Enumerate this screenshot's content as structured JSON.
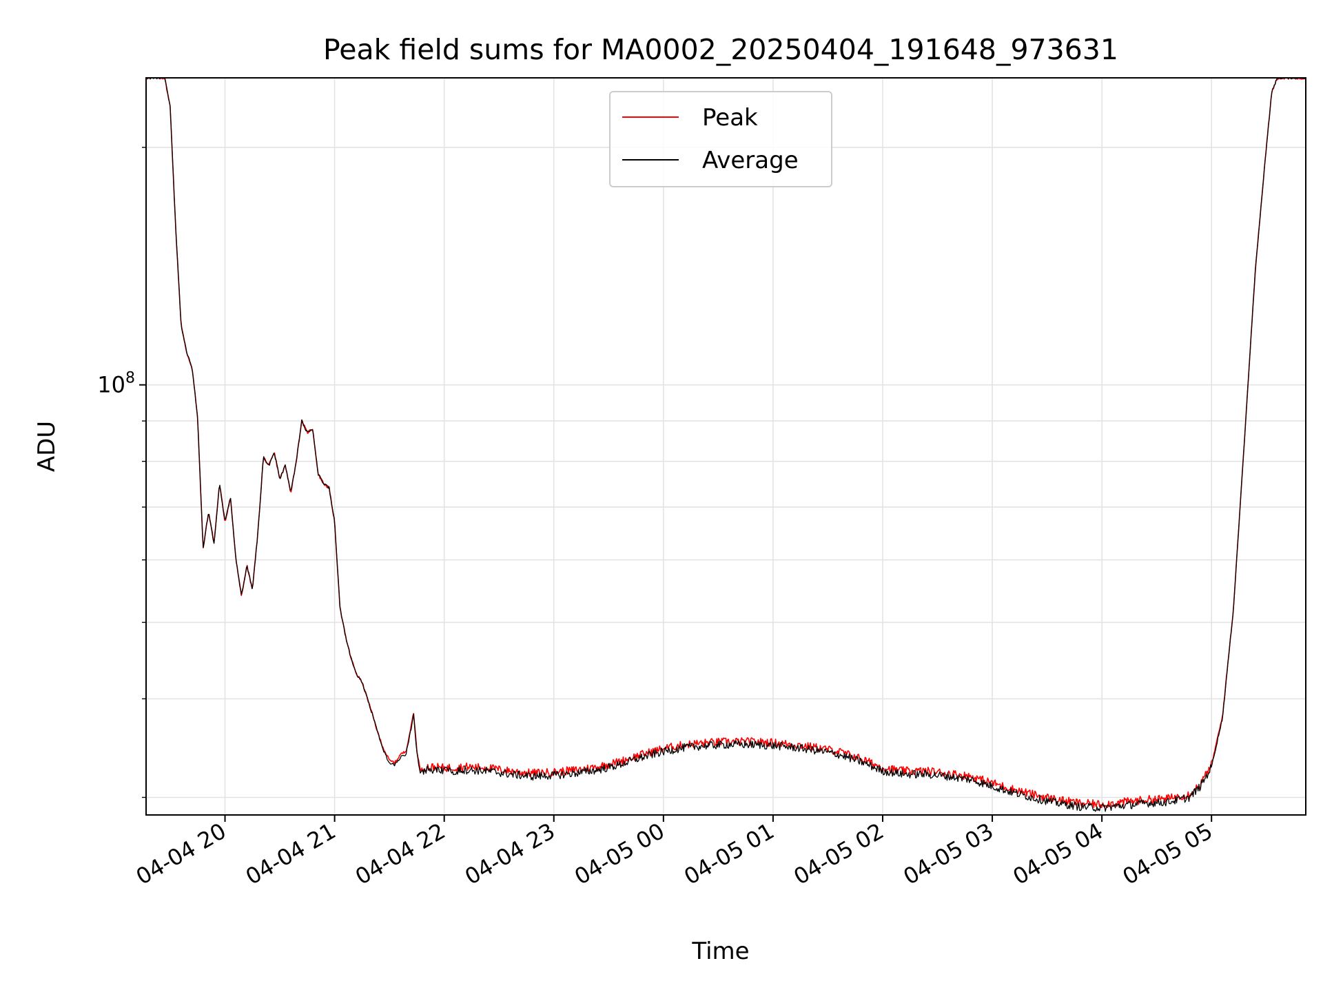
{
  "chart_data": {
    "type": "line",
    "title": "Peak field sums for MA0002_20250404_191648_973631",
    "xlabel": "Time",
    "ylabel": "ADU",
    "y_scale": "log",
    "grid": true,
    "legend_position": "upper center",
    "y_major_tick_label": "10^8",
    "x_tick_labels": [
      "04-04 20",
      "04-04 21",
      "04-04 22",
      "04-04 23",
      "04-05 00",
      "04-05 01",
      "04-05 02",
      "04-05 03",
      "04-05 04",
      "04-05 05"
    ],
    "x_tick_hours": [
      20,
      21,
      22,
      23,
      24,
      25,
      26,
      27,
      28,
      29
    ],
    "xlim_hours": [
      19.28,
      29.86
    ],
    "ylim": [
      28500000,
      245000000
    ],
    "series": [
      {
        "name": "Peak",
        "color": "#ff0000",
        "points": [
          [
            19.28,
            245000000
          ],
          [
            19.45,
            245000000
          ],
          [
            19.5,
            225000000
          ],
          [
            19.55,
            158000000
          ],
          [
            19.6,
            119000000
          ],
          [
            19.65,
            110000000
          ],
          [
            19.7,
            105000000
          ],
          [
            19.75,
            91000000
          ],
          [
            19.8,
            62000000
          ],
          [
            19.85,
            69000000
          ],
          [
            19.9,
            63000000
          ],
          [
            19.95,
            75000000
          ],
          [
            20.0,
            67000000
          ],
          [
            20.05,
            72000000
          ],
          [
            20.1,
            60000000
          ],
          [
            20.15,
            54000000
          ],
          [
            20.2,
            59000000
          ],
          [
            20.25,
            55000000
          ],
          [
            20.3,
            65000000
          ],
          [
            20.35,
            81000000
          ],
          [
            20.4,
            79000000
          ],
          [
            20.45,
            82000000
          ],
          [
            20.5,
            76000000
          ],
          [
            20.55,
            79000000
          ],
          [
            20.6,
            73000000
          ],
          [
            20.65,
            80000000
          ],
          [
            20.7,
            90000000
          ],
          [
            20.75,
            87000000
          ],
          [
            20.8,
            88000000
          ],
          [
            20.85,
            77000000
          ],
          [
            20.9,
            75000000
          ],
          [
            20.95,
            74000000
          ],
          [
            21.0,
            67000000
          ],
          [
            21.05,
            52000000
          ],
          [
            21.1,
            48000000
          ],
          [
            21.15,
            45000000
          ],
          [
            21.2,
            43000000
          ],
          [
            21.25,
            42000000
          ],
          [
            21.3,
            40000000
          ],
          [
            21.35,
            38000000
          ],
          [
            21.4,
            36000000
          ],
          [
            21.45,
            34500000
          ],
          [
            21.5,
            33400000
          ],
          [
            21.55,
            33200000
          ],
          [
            21.6,
            34000000
          ],
          [
            21.65,
            34300000
          ],
          [
            21.7,
            37000000
          ],
          [
            21.72,
            38500000
          ],
          [
            21.75,
            34500000
          ],
          [
            21.78,
            32500000
          ],
          [
            21.85,
            32800000
          ],
          [
            22.0,
            32700000
          ],
          [
            22.2,
            32800000
          ],
          [
            22.4,
            32700000
          ],
          [
            22.6,
            32400000
          ],
          [
            22.8,
            32200000
          ],
          [
            23.0,
            32300000
          ],
          [
            23.2,
            32500000
          ],
          [
            23.4,
            32800000
          ],
          [
            23.6,
            33300000
          ],
          [
            23.8,
            34000000
          ],
          [
            24.0,
            34600000
          ],
          [
            24.2,
            35000000
          ],
          [
            24.4,
            35200000
          ],
          [
            24.6,
            35300000
          ],
          [
            24.8,
            35300000
          ],
          [
            25.0,
            35200000
          ],
          [
            25.2,
            35000000
          ],
          [
            25.4,
            34700000
          ],
          [
            25.6,
            34300000
          ],
          [
            25.8,
            33600000
          ],
          [
            26.0,
            32700000
          ],
          [
            26.2,
            32400000
          ],
          [
            26.4,
            32400000
          ],
          [
            26.6,
            32200000
          ],
          [
            26.8,
            31900000
          ],
          [
            27.0,
            31300000
          ],
          [
            27.2,
            30700000
          ],
          [
            27.4,
            30200000
          ],
          [
            27.6,
            29800000
          ],
          [
            27.8,
            29500000
          ],
          [
            28.0,
            29400000
          ],
          [
            28.2,
            29600000
          ],
          [
            28.4,
            29800000
          ],
          [
            28.6,
            29900000
          ],
          [
            28.8,
            30300000
          ],
          [
            28.9,
            31200000
          ],
          [
            29.0,
            33000000
          ],
          [
            29.1,
            38000000
          ],
          [
            29.2,
            52000000
          ],
          [
            29.3,
            85000000
          ],
          [
            29.4,
            140000000
          ],
          [
            29.5,
            200000000
          ],
          [
            29.55,
            235000000
          ],
          [
            29.6,
            245000000
          ],
          [
            29.86,
            245000000
          ]
        ]
      },
      {
        "name": "Average",
        "color": "#000000",
        "points": [
          [
            19.28,
            245000000
          ],
          [
            19.45,
            245000000
          ],
          [
            19.5,
            225000000
          ],
          [
            19.55,
            158000000
          ],
          [
            19.6,
            119000000
          ],
          [
            19.65,
            110000000
          ],
          [
            19.7,
            105000000
          ],
          [
            19.75,
            91000000
          ],
          [
            19.8,
            62000000
          ],
          [
            19.85,
            69000000
          ],
          [
            19.9,
            63000000
          ],
          [
            19.95,
            75000000
          ],
          [
            20.0,
            67000000
          ],
          [
            20.05,
            72000000
          ],
          [
            20.1,
            60000000
          ],
          [
            20.15,
            54000000
          ],
          [
            20.2,
            59000000
          ],
          [
            20.25,
            55000000
          ],
          [
            20.3,
            65000000
          ],
          [
            20.35,
            81000000
          ],
          [
            20.4,
            79000000
          ],
          [
            20.45,
            82000000
          ],
          [
            20.5,
            76000000
          ],
          [
            20.55,
            79000000
          ],
          [
            20.6,
            73000000
          ],
          [
            20.65,
            80000000
          ],
          [
            20.7,
            90000000
          ],
          [
            20.75,
            87000000
          ],
          [
            20.8,
            88000000
          ],
          [
            20.85,
            77000000
          ],
          [
            20.9,
            75000000
          ],
          [
            20.95,
            74000000
          ],
          [
            21.0,
            67000000
          ],
          [
            21.05,
            52000000
          ],
          [
            21.1,
            48000000
          ],
          [
            21.15,
            45000000
          ],
          [
            21.2,
            43000000
          ],
          [
            21.25,
            42000000
          ],
          [
            21.3,
            40000000
          ],
          [
            21.35,
            38000000
          ],
          [
            21.4,
            36000000
          ],
          [
            21.45,
            34300000
          ],
          [
            21.5,
            33100000
          ],
          [
            21.55,
            33000000
          ],
          [
            21.6,
            33700000
          ],
          [
            21.65,
            34000000
          ],
          [
            21.7,
            36800000
          ],
          [
            21.72,
            38300000
          ],
          [
            21.75,
            34200000
          ],
          [
            21.78,
            32300000
          ],
          [
            21.85,
            32500000
          ],
          [
            22.0,
            32400000
          ],
          [
            22.2,
            32500000
          ],
          [
            22.4,
            32400000
          ],
          [
            22.6,
            32100000
          ],
          [
            22.8,
            31900000
          ],
          [
            23.0,
            32000000
          ],
          [
            23.2,
            32200000
          ],
          [
            23.4,
            32500000
          ],
          [
            23.6,
            33000000
          ],
          [
            23.8,
            33700000
          ],
          [
            24.0,
            34300000
          ],
          [
            24.2,
            34700000
          ],
          [
            24.4,
            34900000
          ],
          [
            24.6,
            35000000
          ],
          [
            24.8,
            35000000
          ],
          [
            25.0,
            34900000
          ],
          [
            25.2,
            34700000
          ],
          [
            25.4,
            34400000
          ],
          [
            25.6,
            34000000
          ],
          [
            25.8,
            33300000
          ],
          [
            26.0,
            32400000
          ],
          [
            26.2,
            32100000
          ],
          [
            26.4,
            32100000
          ],
          [
            26.6,
            31900000
          ],
          [
            26.8,
            31600000
          ],
          [
            27.0,
            31000000
          ],
          [
            27.2,
            30400000
          ],
          [
            27.4,
            29900000
          ],
          [
            27.6,
            29500000
          ],
          [
            27.8,
            29200000
          ],
          [
            28.0,
            29100000
          ],
          [
            28.2,
            29300000
          ],
          [
            28.4,
            29500000
          ],
          [
            28.6,
            29600000
          ],
          [
            28.8,
            30000000
          ],
          [
            28.9,
            31000000
          ],
          [
            29.0,
            32800000
          ],
          [
            29.1,
            37800000
          ],
          [
            29.2,
            52000000
          ],
          [
            29.3,
            85000000
          ],
          [
            29.4,
            140000000
          ],
          [
            29.5,
            200000000
          ],
          [
            29.55,
            235000000
          ],
          [
            29.6,
            245000000
          ],
          [
            29.86,
            245000000
          ]
        ]
      }
    ]
  }
}
